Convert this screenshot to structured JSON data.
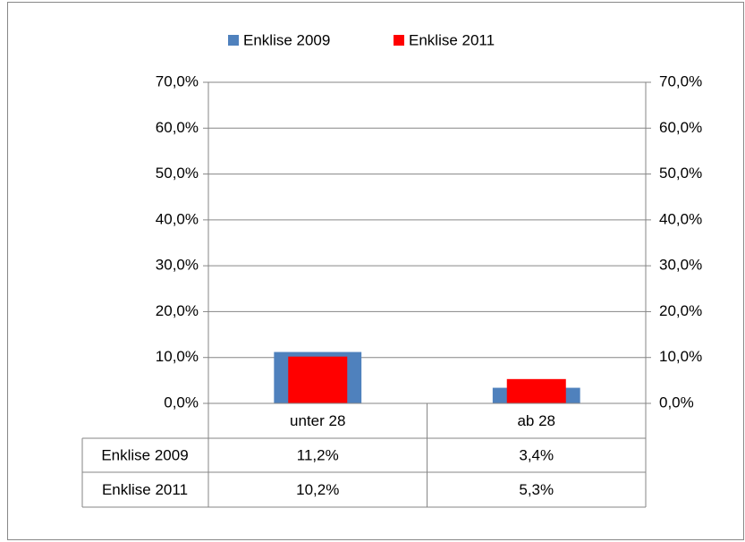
{
  "chart_data": {
    "type": "bar",
    "legend": "top",
    "grid": true,
    "categories": [
      "unter 28",
      "ab 28"
    ],
    "series": [
      {
        "name": "Enklise 2009",
        "color": "#4f81bd",
        "values": [
          11.2,
          3.4
        ],
        "value_labels": [
          "11,2%",
          "3,4%"
        ],
        "axis": "y"
      },
      {
        "name": "Enklise 2011",
        "color": "#ff0000",
        "values": [
          10.2,
          5.3
        ],
        "value_labels": [
          "10,2%",
          "5,3%"
        ],
        "axis": "y2"
      }
    ],
    "ylim": [
      0,
      70
    ],
    "yticks": [
      {
        "value": 0,
        "label": "0,0%"
      },
      {
        "value": 10,
        "label": "10,0%"
      },
      {
        "value": 20,
        "label": "20,0%"
      },
      {
        "value": 30,
        "label": "30,0%"
      },
      {
        "value": 40,
        "label": "40,0%"
      },
      {
        "value": 50,
        "label": "50,0%"
      },
      {
        "value": 60,
        "label": "60,0%"
      },
      {
        "value": 70,
        "label": "70,0%"
      }
    ],
    "y2lim": [
      0,
      70
    ],
    "y2ticks": [
      {
        "value": 0,
        "label": "0,0%"
      },
      {
        "value": 10,
        "label": "10,0%"
      },
      {
        "value": 20,
        "label": "20,0%"
      },
      {
        "value": 30,
        "label": "30,0%"
      },
      {
        "value": 40,
        "label": "40,0%"
      },
      {
        "value": 50,
        "label": "50,0%"
      },
      {
        "value": 60,
        "label": "60,0%"
      },
      {
        "value": 70,
        "label": "70,0%"
      }
    ]
  }
}
